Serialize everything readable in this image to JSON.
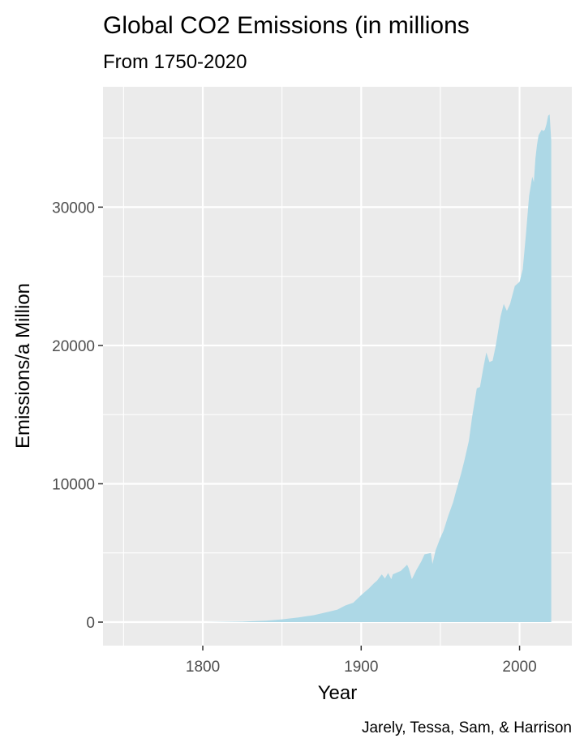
{
  "chart_data": {
    "type": "area",
    "title": "Global CO2 Emissions (in millions",
    "subtitle": "From 1750-2020",
    "xlabel": "Year",
    "ylabel": "Emissions/a Million",
    "caption": "Jarely, Tessa, Sam, & Harrison",
    "xlim": [
      1737,
      2033
    ],
    "ylim": [
      -1700,
      38700
    ],
    "x_ticks": [
      1800,
      1900,
      2000
    ],
    "y_ticks": [
      0,
      10000,
      20000,
      30000
    ],
    "x_tick_labels": [
      "1800",
      "1900",
      "2000"
    ],
    "y_tick_labels": [
      "0",
      "10000",
      "20000",
      "30000"
    ],
    "grid": true,
    "fill_color": "#add8e6",
    "panel_color": "#ebebeb",
    "grid_color": "#ffffff",
    "x": [
      1750,
      1800,
      1825,
      1840,
      1850,
      1860,
      1870,
      1880,
      1885,
      1890,
      1895,
      1900,
      1905,
      1908,
      1910,
      1913,
      1915,
      1917,
      1919,
      1920,
      1925,
      1929,
      1930,
      1932,
      1935,
      1938,
      1940,
      1942,
      1944,
      1945,
      1946,
      1947,
      1950,
      1952,
      1955,
      1958,
      1960,
      1963,
      1965,
      1968,
      1970,
      1973,
      1975,
      1977,
      1979,
      1981,
      1983,
      1985,
      1988,
      1990,
      1992,
      1994,
      1997,
      2000,
      2002,
      2004,
      2006,
      2008,
      2009,
      2010,
      2011,
      2012,
      2013,
      2014,
      2015,
      2016,
      2017,
      2018,
      2019,
      2020
    ],
    "values": [
      0,
      0,
      40,
      100,
      200,
      330,
      500,
      760,
      900,
      1200,
      1400,
      1950,
      2450,
      2800,
      3000,
      3450,
      3150,
      3550,
      3100,
      3450,
      3700,
      4150,
      3900,
      3100,
      3800,
      4400,
      4900,
      4950,
      5000,
      4200,
      4700,
      5200,
      6100,
      6600,
      7700,
      8650,
      9500,
      10700,
      11600,
      13100,
      14800,
      16900,
      17000,
      18300,
      19500,
      18800,
      18900,
      20000,
      22100,
      23000,
      22500,
      23000,
      24300,
      24600,
      25500,
      28000,
      30800,
      32200,
      31800,
      33500,
      34500,
      35200,
      35400,
      35600,
      35500,
      35600,
      36000,
      36600,
      36700,
      34800
    ]
  }
}
